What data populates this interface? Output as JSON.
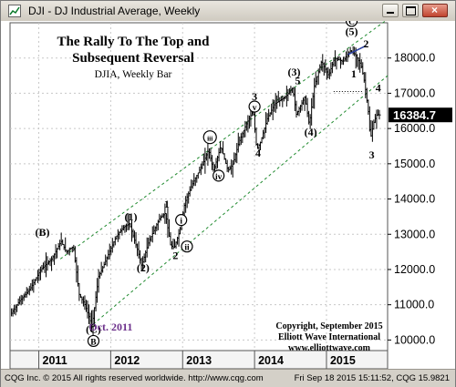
{
  "window": {
    "title": "DJI - DJ Industrial Average, Weekly"
  },
  "status": {
    "left": "CQG Inc. © 2015 All rights reserved worldwide. http://www.cqg.com",
    "right": "Fri Sep 18 2015 15:11:52, CQG 15.9821"
  },
  "chart_data": {
    "type": "bar",
    "title": "The Rally To The Top and",
    "subtitle": "Subsequent Reversal",
    "caption": "DJIA, Weekly Bar",
    "copyright": [
      "Copyright, September 2015",
      "Elliott Wave International",
      "www.elliottwave.com"
    ],
    "last_price": "16384.7",
    "ylim": [
      9700,
      19000
    ],
    "yticks": [
      10000,
      11000,
      12000,
      13000,
      14000,
      15000,
      16000,
      17000,
      18000
    ],
    "ytick_labels": [
      "10000.0",
      "11000.0",
      "12000.0",
      "13000.0",
      "14000.0",
      "15000.0",
      "16000.0",
      "17000.0",
      "18000.0"
    ],
    "xlim": [
      2010.6,
      2015.85
    ],
    "xticks": [
      2011,
      2012,
      2013,
      2014,
      2015
    ],
    "xtick_labels": [
      "2011",
      "2012",
      "2013",
      "2014",
      "2015"
    ],
    "price_path": [
      [
        2010.62,
        10700
      ],
      [
        2010.75,
        11100
      ],
      [
        2010.9,
        11450
      ],
      [
        2011.05,
        12000
      ],
      [
        2011.2,
        12300
      ],
      [
        2011.33,
        12800
      ],
      [
        2011.4,
        12500
      ],
      [
        2011.5,
        12650
      ],
      [
        2011.58,
        11300
      ],
      [
        2011.66,
        11000
      ],
      [
        2011.76,
        10400
      ],
      [
        2011.85,
        11800
      ],
      [
        2011.92,
        12100
      ],
      [
        2012.0,
        12500
      ],
      [
        2012.1,
        12950
      ],
      [
        2012.2,
        13200
      ],
      [
        2012.28,
        13300
      ],
      [
        2012.4,
        12500
      ],
      [
        2012.45,
        12100
      ],
      [
        2012.55,
        12800
      ],
      [
        2012.7,
        13450
      ],
      [
        2012.78,
        13600
      ],
      [
        2012.85,
        12700
      ],
      [
        2012.9,
        12600
      ],
      [
        2012.98,
        13100
      ],
      [
        2013.05,
        13900
      ],
      [
        2013.15,
        14400
      ],
      [
        2013.3,
        15000
      ],
      [
        2013.38,
        15400
      ],
      [
        2013.45,
        14800
      ],
      [
        2013.55,
        15500
      ],
      [
        2013.65,
        14800
      ],
      [
        2013.72,
        15000
      ],
      [
        2013.8,
        15600
      ],
      [
        2013.9,
        16100
      ],
      [
        2014.0,
        16500
      ],
      [
        2014.05,
        15400
      ],
      [
        2014.1,
        15600
      ],
      [
        2014.2,
        16300
      ],
      [
        2014.3,
        16700
      ],
      [
        2014.45,
        16900
      ],
      [
        2014.55,
        17150
      ],
      [
        2014.6,
        16400
      ],
      [
        2014.72,
        16900
      ],
      [
        2014.78,
        16100
      ],
      [
        2014.85,
        17200
      ],
      [
        2014.95,
        17900
      ],
      [
        2015.05,
        17500
      ],
      [
        2015.13,
        18000
      ],
      [
        2015.25,
        17900
      ],
      [
        2015.35,
        18200
      ],
      [
        2015.42,
        18100
      ],
      [
        2015.5,
        17800
      ],
      [
        2015.55,
        17300
      ],
      [
        2015.6,
        16500
      ],
      [
        2015.63,
        15700
      ],
      [
        2015.68,
        16200
      ],
      [
        2015.72,
        16400
      ],
      [
        2015.75,
        16385
      ]
    ],
    "channel_lines": [
      {
        "from": [
          2011.3,
          12300
        ],
        "to": [
          2015.85,
          19100
        ]
      },
      {
        "from": [
          2011.7,
          10350
        ],
        "to": [
          2015.85,
          17500
        ]
      }
    ],
    "wave_labels": [
      {
        "text": "(B)",
        "x": 2011.05,
        "y": 12950
      },
      {
        "text": "(C)",
        "x": 2011.76,
        "y": 10200
      },
      {
        "text": "B",
        "x": 2011.76,
        "y": 9870,
        "circled": true
      },
      {
        "text": "Oct. 2011",
        "x": 2012.0,
        "y": 10270,
        "color": "#6b2f8a"
      },
      {
        "text": "(1)",
        "x": 2012.28,
        "y": 13400
      },
      {
        "text": "(2)",
        "x": 2012.45,
        "y": 11950
      },
      {
        "text": "1",
        "x": 2012.78,
        "y": 13750
      },
      {
        "text": "i",
        "x": 2012.98,
        "y": 13300,
        "circled": true
      },
      {
        "text": "ii",
        "x": 2013.06,
        "y": 12550,
        "circled": true
      },
      {
        "text": "2",
        "x": 2012.9,
        "y": 12300
      },
      {
        "text": "iii",
        "x": 2013.38,
        "y": 15650,
        "circled": true
      },
      {
        "text": "iv",
        "x": 2013.5,
        "y": 14560,
        "circled": true
      },
      {
        "text": "3",
        "x": 2014.0,
        "y": 16800
      },
      {
        "text": "v",
        "x": 2014.0,
        "y": 16520,
        "circled": true
      },
      {
        "text": "4",
        "x": 2014.05,
        "y": 15200
      },
      {
        "text": "(3)",
        "x": 2014.55,
        "y": 17500
      },
      {
        "text": "5",
        "x": 2014.6,
        "y": 17250
      },
      {
        "text": "(4)",
        "x": 2014.78,
        "y": 15800
      },
      {
        "text": "(5)",
        "x": 2015.35,
        "y": 18650
      },
      {
        "text": "C",
        "x": 2015.35,
        "y": 18950,
        "circled": true
      },
      {
        "text": "2",
        "x": 2015.55,
        "y": 18300
      },
      {
        "text": "1",
        "x": 2015.38,
        "y": 17450
      },
      {
        "text": "4",
        "x": 2015.72,
        "y": 17050
      },
      {
        "text": "3",
        "x": 2015.63,
        "y": 15150
      }
    ]
  }
}
